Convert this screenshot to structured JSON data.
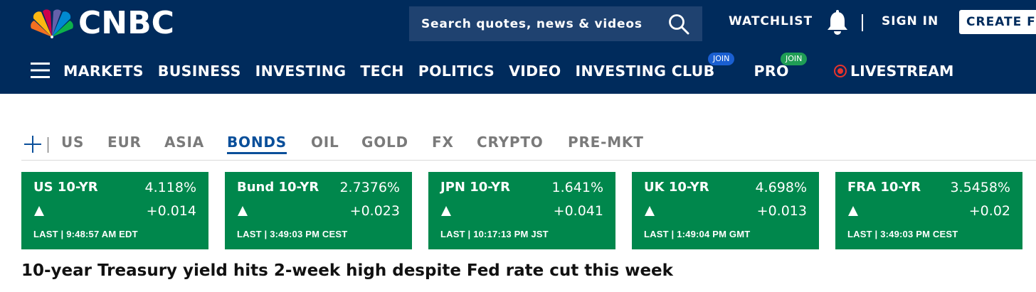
{
  "header": {
    "logo_text": "CNBC",
    "search": {
      "placeholder": "Search quotes, news & videos"
    },
    "watchlist_label": "WATCHLIST",
    "sign_in_label": "SIGN IN",
    "create_label": "CREATE FREE ACCOUNT",
    "colors": {
      "background": "#002b5c",
      "search_bg": "#1f4270"
    }
  },
  "nav": {
    "items": [
      "MARKETS",
      "BUSINESS",
      "INVESTING",
      "TECH",
      "POLITICS",
      "VIDEO",
      "INVESTING CLUB",
      "PRO"
    ],
    "investing_club_badge": "JOIN",
    "pro_badge": "JOIN",
    "livestream_label": "LIVESTREAM",
    "colors": {
      "club_badge": "#1a5fd1",
      "pro_badge": "#1f9d55",
      "live": "#e8332c"
    }
  },
  "tabs": {
    "items": [
      "US",
      "EUR",
      "ASIA",
      "BONDS",
      "OIL",
      "GOLD",
      "FX",
      "CRYPTO",
      "PRE-MKT"
    ],
    "active": "BONDS"
  },
  "quotes": [
    {
      "name": "US 10-YR",
      "value": "4.118%",
      "change": "+0.014",
      "last": "LAST | 9:48:57 AM EDT"
    },
    {
      "name": "Bund 10-YR",
      "value": "2.7376%",
      "change": "+0.023",
      "last": "LAST | 3:49:03 PM CEST"
    },
    {
      "name": "JPN 10-YR",
      "value": "1.641%",
      "change": "+0.041",
      "last": "LAST | 10:17:13 PM JST"
    },
    {
      "name": "UK 10-YR",
      "value": "4.698%",
      "change": "+0.013",
      "last": "LAST | 1:49:04 PM GMT"
    },
    {
      "name": "FRA 10-YR",
      "value": "3.5458%",
      "change": "+0.02",
      "last": "LAST | 3:49:03 PM CEST"
    }
  ],
  "quote_card_color": "#00874c",
  "headline": "10-year Treasury yield hits 2-week high despite Fed rate cut this week"
}
